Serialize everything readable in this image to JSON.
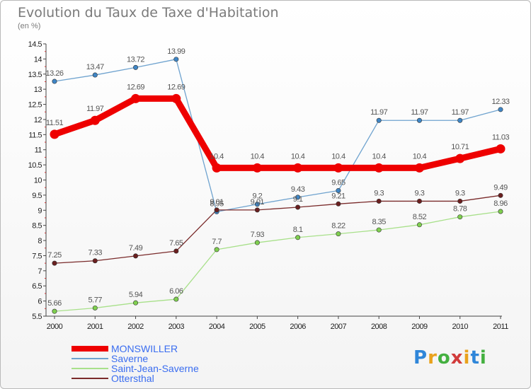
{
  "header": {
    "title": "Evolution du Taux de Taxe d'Habitation",
    "subtitle": "(en %)"
  },
  "logo": {
    "text": "Proxiti",
    "colors": [
      "#2f86d9",
      "#e9a21c",
      "#44b040",
      "#d13b3b",
      "#e9a21c",
      "#2f86d9",
      "#44b040"
    ]
  },
  "chart_data": {
    "type": "line",
    "title": "Evolution du Taux de Taxe d'Habitation",
    "ylabel": "(en %)",
    "xlabel": "",
    "x": [
      "2000",
      "2001",
      "2002",
      "2003",
      "2004",
      "2005",
      "2006",
      "2007",
      "2008",
      "2009",
      "2010",
      "2011"
    ],
    "ylim": [
      5.5,
      14.5
    ],
    "yticks": [
      "5.5",
      "6",
      "6.5",
      "7",
      "7.5",
      "8",
      "8.5",
      "9",
      "9.5",
      "10",
      "10.5",
      "11",
      "11.5",
      "12",
      "12.5",
      "13",
      "13.5",
      "14",
      "14.5"
    ],
    "grid": false,
    "legend_position": "bottom-left",
    "series": [
      {
        "name": "MONSWILLER",
        "color": "#ee0000",
        "emphasis": true,
        "values": [
          11.51,
          11.97,
          12.69,
          12.69,
          10.4,
          10.4,
          10.4,
          10.4,
          10.4,
          10.4,
          10.71,
          11.03
        ],
        "labels": [
          "11.51",
          "11.97",
          "12.69",
          "12.69",
          "10.4",
          "10.4",
          "10.4",
          "10.4",
          "10.4",
          "10.4",
          "10.71",
          "11.03"
        ]
      },
      {
        "name": "Saverne",
        "color": "#6fa3cf",
        "marker": "#3f86c6",
        "values": [
          13.26,
          13.47,
          13.72,
          13.99,
          8.95,
          9.2,
          9.43,
          9.65,
          11.97,
          11.97,
          11.97,
          12.33
        ],
        "labels": [
          "13.26",
          "13.47",
          "13.72",
          "13.99",
          "8.95",
          "9.2",
          "9.43",
          "9.65",
          "11.97",
          "11.97",
          "11.97",
          "12.33"
        ]
      },
      {
        "name": "Saint-Jean-Saverne",
        "color": "#a8e08a",
        "marker": "#7fcf4f",
        "values": [
          5.66,
          5.77,
          5.94,
          6.06,
          7.7,
          7.93,
          8.1,
          8.22,
          8.35,
          8.52,
          8.78,
          8.96
        ],
        "labels": [
          "5.66",
          "5.77",
          "5.94",
          "6.06",
          "7.7",
          "7.93",
          "8.1",
          "8.22",
          "8.35",
          "8.52",
          "8.78",
          "8.96"
        ]
      },
      {
        "name": "Ottersthal",
        "color": "#7a2b2b",
        "marker": "#6a1f1f",
        "values": [
          7.25,
          7.33,
          7.49,
          7.65,
          9.01,
          9.01,
          9.1,
          9.21,
          9.3,
          9.3,
          9.3,
          9.49
        ],
        "labels": [
          "7.25",
          "7.33",
          "7.49",
          "7.65",
          "9.01",
          "9.01",
          "9.1",
          "9.21",
          "9.3",
          "9.3",
          "9.3",
          "9.49"
        ]
      }
    ]
  }
}
